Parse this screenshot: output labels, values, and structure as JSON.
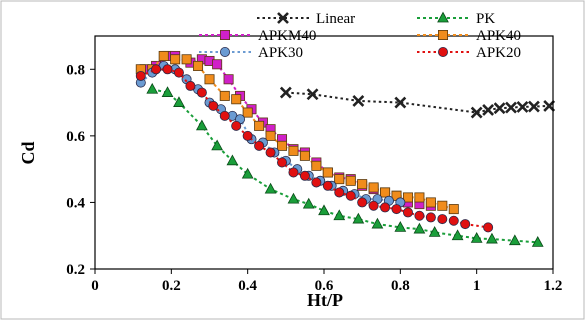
{
  "chart_data": {
    "type": "scatter",
    "xlabel": "Ht/P",
    "ylabel": "Cd",
    "xlim": [
      0,
      1.2
    ],
    "ylim": [
      0.2,
      0.9
    ],
    "xticks": [
      "0",
      "0.2",
      "0.4",
      "0.6",
      "0.8",
      "1",
      "1.2"
    ],
    "yticks": [
      "0.2",
      "0.4",
      "0.6",
      "0.8"
    ],
    "grid": false,
    "legend_position": "top-right",
    "series": [
      {
        "name": "Linear",
        "color": "#222222",
        "marker": "x",
        "x": [
          0.5,
          0.57,
          0.69,
          0.8,
          1.0,
          1.03,
          1.06,
          1.09,
          1.12,
          1.15,
          1.19
        ],
        "y": [
          0.73,
          0.725,
          0.705,
          0.7,
          0.67,
          0.678,
          0.683,
          0.685,
          0.687,
          0.688,
          0.69
        ]
      },
      {
        "name": "PK",
        "color": "#1a9e3a",
        "marker": "triangle",
        "x": [
          0.15,
          0.19,
          0.22,
          0.28,
          0.32,
          0.36,
          0.4,
          0.46,
          0.52,
          0.56,
          0.6,
          0.64,
          0.69,
          0.74,
          0.8,
          0.85,
          0.89,
          0.95,
          1.0,
          1.04,
          1.1,
          1.16
        ],
        "y": [
          0.74,
          0.73,
          0.7,
          0.63,
          0.57,
          0.525,
          0.485,
          0.44,
          0.41,
          0.395,
          0.375,
          0.36,
          0.35,
          0.335,
          0.325,
          0.32,
          0.31,
          0.3,
          0.292,
          0.29,
          0.285,
          0.28
        ]
      },
      {
        "name": "APKM40",
        "color": "#d020c8",
        "marker": "square",
        "x": [
          0.13,
          0.16,
          0.19,
          0.21,
          0.25,
          0.28,
          0.3,
          0.32,
          0.35,
          0.38,
          0.41,
          0.44,
          0.46,
          0.49,
          0.52,
          0.55,
          0.58,
          0.61,
          0.64,
          0.67,
          0.7,
          0.73,
          0.76,
          0.79,
          0.82,
          0.85,
          0.88
        ],
        "y": [
          0.8,
          0.81,
          0.84,
          0.84,
          0.82,
          0.83,
          0.825,
          0.815,
          0.77,
          0.72,
          0.68,
          0.64,
          0.62,
          0.59,
          0.56,
          0.55,
          0.52,
          0.49,
          0.475,
          0.47,
          0.45,
          0.44,
          0.43,
          0.42,
          0.4,
          0.395,
          0.39
        ]
      },
      {
        "name": "APK40",
        "color": "#f08c1c",
        "marker": "square",
        "x": [
          0.12,
          0.15,
          0.18,
          0.21,
          0.24,
          0.27,
          0.3,
          0.34,
          0.37,
          0.4,
          0.43,
          0.46,
          0.49,
          0.52,
          0.55,
          0.58,
          0.61,
          0.64,
          0.67,
          0.7,
          0.73,
          0.76,
          0.79,
          0.82,
          0.85,
          0.88,
          0.91,
          0.94
        ],
        "y": [
          0.8,
          0.8,
          0.84,
          0.83,
          0.83,
          0.81,
          0.77,
          0.72,
          0.71,
          0.67,
          0.63,
          0.6,
          0.57,
          0.555,
          0.54,
          0.51,
          0.49,
          0.47,
          0.465,
          0.455,
          0.445,
          0.43,
          0.42,
          0.415,
          0.415,
          0.4,
          0.39,
          0.38
        ]
      },
      {
        "name": "APK30",
        "color": "#6b9bd2",
        "marker": "circle",
        "x": [
          0.12,
          0.15,
          0.18,
          0.21,
          0.24,
          0.27,
          0.3,
          0.33,
          0.36,
          0.38,
          0.41,
          0.44,
          0.47,
          0.5,
          0.53,
          0.56,
          0.59,
          0.62,
          0.65,
          0.68,
          0.71,
          0.74,
          0.77,
          0.8
        ],
        "y": [
          0.76,
          0.79,
          0.81,
          0.8,
          0.77,
          0.74,
          0.7,
          0.68,
          0.66,
          0.65,
          0.59,
          0.58,
          0.55,
          0.525,
          0.5,
          0.48,
          0.465,
          0.45,
          0.435,
          0.425,
          0.41,
          0.41,
          0.405,
          0.4
        ]
      },
      {
        "name": "APK20",
        "color": "#e01010",
        "marker": "circle",
        "x": [
          0.12,
          0.16,
          0.19,
          0.22,
          0.25,
          0.28,
          0.31,
          0.34,
          0.37,
          0.4,
          0.43,
          0.46,
          0.49,
          0.52,
          0.55,
          0.58,
          0.61,
          0.64,
          0.67,
          0.7,
          0.73,
          0.76,
          0.79,
          0.82,
          0.85,
          0.88,
          0.91,
          0.94,
          0.97,
          1.03
        ],
        "y": [
          0.78,
          0.8,
          0.8,
          0.79,
          0.75,
          0.73,
          0.69,
          0.66,
          0.63,
          0.6,
          0.57,
          0.55,
          0.52,
          0.49,
          0.48,
          0.46,
          0.45,
          0.43,
          0.42,
          0.4,
          0.39,
          0.385,
          0.38,
          0.37,
          0.36,
          0.355,
          0.35,
          0.345,
          0.335,
          0.325
        ]
      }
    ]
  }
}
